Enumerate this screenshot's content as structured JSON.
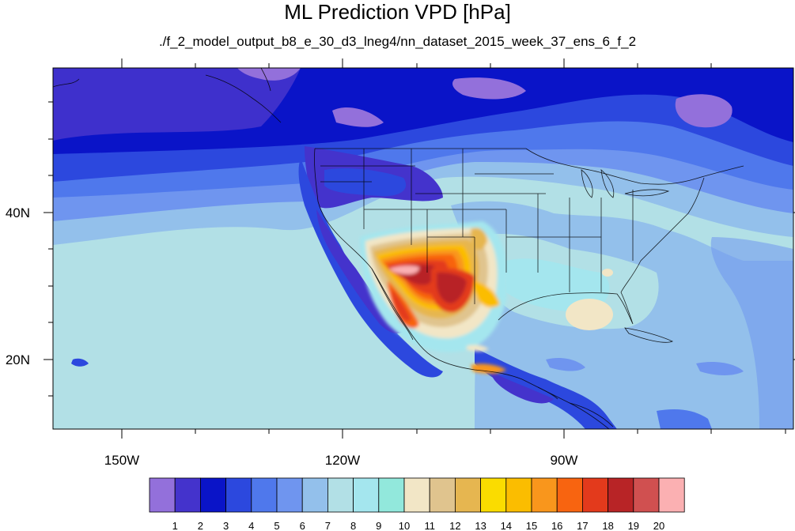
{
  "title": "ML Prediction VPD [hPa]",
  "subtitle": "./f_2_model_output_b8_e_30_d3_lneg4/nn_dataset_2015_week_37_ens_6_f_2",
  "axes": {
    "lon_labels": [
      "150W",
      "120W",
      "90W"
    ],
    "lat_labels": [
      "40N",
      "20N"
    ]
  },
  "colorbar": {
    "labels": [
      "1",
      "2",
      "3",
      "4",
      "5",
      "6",
      "7",
      "8",
      "9",
      "10",
      "11",
      "12",
      "13",
      "14",
      "15",
      "16",
      "17",
      "18",
      "19",
      "20"
    ],
    "colors": [
      "#9370db",
      "#4433cc",
      "#0a14c8",
      "#2c48de",
      "#4f78ec",
      "#6f95ef",
      "#93c0eb",
      "#b2e0e6",
      "#a4e6ee",
      "#92e8dc",
      "#f2e6c6",
      "#e0c48e",
      "#e6b650",
      "#fadc00",
      "#fbbd00",
      "#f9961c",
      "#f86410",
      "#e33a1c",
      "#b82426",
      "#d05050",
      "#fbb0b2"
    ]
  }
}
